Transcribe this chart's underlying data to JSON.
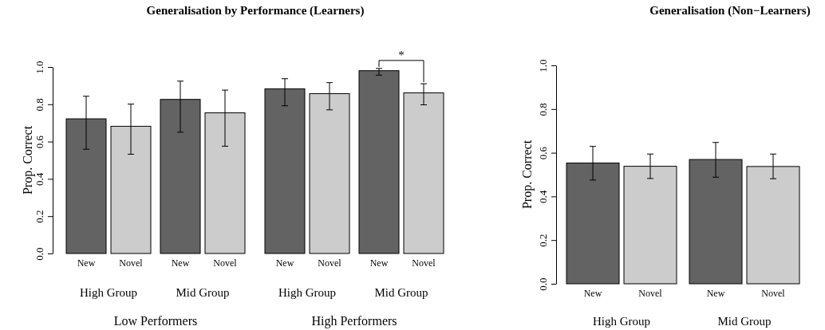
{
  "chart_data": [
    {
      "type": "bar",
      "title": "Generalisation by Performance (Learners)",
      "ylabel": "Prop. Correct",
      "categories": [
        "New",
        "Novel",
        "New",
        "Novel",
        "New",
        "Novel",
        "New",
        "Novel"
      ],
      "values": [
        0.722,
        0.682,
        0.826,
        0.754,
        0.883,
        0.857,
        0.98,
        0.861
      ],
      "errors": [
        [
          0.559,
          0.843
        ],
        [
          0.532,
          0.801
        ],
        [
          0.65,
          0.924
        ],
        [
          0.575,
          0.876
        ],
        [
          0.792,
          0.937
        ],
        [
          0.77,
          0.916
        ],
        [
          0.956,
          0.992
        ],
        [
          0.797,
          0.91
        ]
      ],
      "colors": [
        "#636363",
        "#cccccc",
        "#636363",
        "#cccccc",
        "#636363",
        "#cccccc",
        "#636363",
        "#cccccc"
      ],
      "ylim": [
        0,
        1
      ],
      "yticks": [
        {
          "value": 0,
          "label": "0.0"
        },
        {
          "value": 0.2,
          "label": "0.2"
        },
        {
          "value": 0.4,
          "label": "0.4"
        },
        {
          "value": 0.6,
          "label": "0.6"
        },
        {
          "value": 0.8,
          "label": "0.8"
        },
        {
          "value": 1,
          "label": "1.0"
        }
      ],
      "annotations": [
        "High Group",
        "Mid Group",
        "High Group",
        "Mid Group",
        "Low Performers",
        "High Performers",
        "*"
      ]
    },
    {
      "type": "bar",
      "title": "Generalisation (Non−Learners)",
      "ylabel": "Prop. Correct",
      "categories": [
        "New",
        "Novel",
        "New",
        "Novel"
      ],
      "values": [
        0.553,
        0.538,
        0.569,
        0.537
      ],
      "errors": [
        [
          0.475,
          0.629
        ],
        [
          0.482,
          0.594
        ],
        [
          0.488,
          0.647
        ],
        [
          0.481,
          0.594
        ]
      ],
      "colors": [
        "#636363",
        "#cccccc",
        "#636363",
        "#cccccc"
      ],
      "ylim": [
        0,
        1
      ],
      "yticks": [
        {
          "value": 0,
          "label": "0.0"
        },
        {
          "value": 0.2,
          "label": "0.2"
        },
        {
          "value": 0.4,
          "label": "0.4"
        },
        {
          "value": 0.6,
          "label": "0.6"
        },
        {
          "value": 0.8,
          "label": "0.8"
        },
        {
          "value": 1,
          "label": "1.0"
        }
      ],
      "annotations": [
        "High Group",
        "Mid Group"
      ]
    }
  ]
}
